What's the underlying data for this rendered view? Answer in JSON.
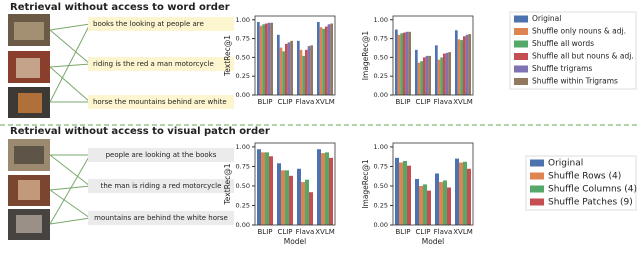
{
  "top": {
    "title": "Retrieval without access to word order",
    "captions": [
      "books the looking at people are",
      "riding is the red a man motorcycle",
      "horse the mountains behind are white"
    ]
  },
  "bottom": {
    "title": "Retrieval without access to visual patch order",
    "captions": [
      "people are looking at the books",
      "the man is riding a red motorcycle",
      "mountains are behind the white horse"
    ]
  },
  "chart_data": [
    {
      "type": "bar",
      "ylabel": "TextRec@1",
      "categories": [
        "BLIP",
        "CLIP",
        "Flava",
        "XVLM"
      ],
      "ylim": [
        0,
        1.05
      ],
      "yticks": [
        {
          "value": 0,
          "label": "0.00"
        },
        {
          "value": 0.25,
          "label": "0.25"
        },
        {
          "value": 0.5,
          "label": "0.50"
        },
        {
          "value": 0.75,
          "label": "0.75"
        },
        {
          "value": 1,
          "label": "1.00"
        }
      ],
      "series": [
        {
          "color": "#4c72b0",
          "values": [
            0.97,
            0.8,
            0.72,
            0.97
          ]
        },
        {
          "color": "#dd8452",
          "values": [
            0.92,
            0.63,
            0.6,
            0.9
          ]
        },
        {
          "color": "#55a868",
          "values": [
            0.94,
            0.58,
            0.52,
            0.88
          ]
        },
        {
          "color": "#c44e52",
          "values": [
            0.95,
            0.68,
            0.6,
            0.91
          ]
        },
        {
          "color": "#8172b3",
          "values": [
            0.96,
            0.7,
            0.65,
            0.94
          ]
        },
        {
          "color": "#937860",
          "values": [
            0.96,
            0.72,
            0.66,
            0.95
          ]
        }
      ]
    },
    {
      "type": "bar",
      "ylabel": "ImageRec@1",
      "categories": [
        "BLIP",
        "CLIP",
        "Flava",
        "XVLM"
      ],
      "ylim": [
        0,
        1.05
      ],
      "yticks": [
        {
          "value": 0,
          "label": "0.00"
        },
        {
          "value": 0.25,
          "label": "0.25"
        },
        {
          "value": 0.5,
          "label": "0.50"
        },
        {
          "value": 0.75,
          "label": "0.75"
        },
        {
          "value": 1,
          "label": "1.00"
        }
      ],
      "series": [
        {
          "name": "Original",
          "color": "#4c72b0",
          "values": [
            0.87,
            0.6,
            0.66,
            0.86
          ]
        },
        {
          "name": "Shuffle only nouns & adj.",
          "color": "#dd8452",
          "values": [
            0.8,
            0.43,
            0.47,
            0.74
          ]
        },
        {
          "name": "Shuffle all words",
          "color": "#55a868",
          "values": [
            0.82,
            0.45,
            0.5,
            0.73
          ]
        },
        {
          "name": "Shuffle all but nouns & adj.",
          "color": "#c44e52",
          "values": [
            0.83,
            0.5,
            0.55,
            0.78
          ]
        },
        {
          "name": "Shuffle trigrams",
          "color": "#8172b3",
          "values": [
            0.84,
            0.52,
            0.56,
            0.8
          ]
        },
        {
          "name": "Shuffle within Trigrams",
          "color": "#937860",
          "values": [
            0.84,
            0.52,
            0.57,
            0.81
          ]
        }
      ]
    },
    {
      "type": "bar",
      "ylabel": "TextRec@1",
      "xlabel": "Model",
      "categories": [
        "BLIP",
        "CLIP",
        "Flava",
        "XVLM"
      ],
      "ylim": [
        0,
        1.05
      ],
      "yticks": [
        {
          "value": 0,
          "label": "0.00"
        },
        {
          "value": 0.25,
          "label": "0.25"
        },
        {
          "value": 0.5,
          "label": "0.50"
        },
        {
          "value": 0.75,
          "label": "0.75"
        },
        {
          "value": 1,
          "label": "1.00"
        }
      ],
      "series": [
        {
          "color": "#4c72b0",
          "values": [
            0.97,
            0.79,
            0.72,
            0.97
          ]
        },
        {
          "color": "#dd8452",
          "values": [
            0.93,
            0.7,
            0.55,
            0.92
          ]
        },
        {
          "color": "#55a868",
          "values": [
            0.93,
            0.7,
            0.58,
            0.93
          ]
        },
        {
          "color": "#c44e52",
          "values": [
            0.88,
            0.63,
            0.42,
            0.86
          ]
        }
      ]
    },
    {
      "type": "bar",
      "ylabel": "ImageRec@1",
      "xlabel": "Model",
      "categories": [
        "BLIP",
        "CLIP",
        "Flava",
        "XVLM"
      ],
      "ylim": [
        0,
        1.05
      ],
      "yticks": [
        {
          "value": 0,
          "label": "0.00"
        },
        {
          "value": 0.25,
          "label": "0.25"
        },
        {
          "value": 0.5,
          "label": "0.50"
        },
        {
          "value": 0.75,
          "label": "0.75"
        },
        {
          "value": 1,
          "label": "1.00"
        }
      ],
      "series": [
        {
          "name": "Original",
          "color": "#4c72b0",
          "values": [
            0.86,
            0.59,
            0.66,
            0.85
          ]
        },
        {
          "name": "Shuffle Rows (4)",
          "color": "#dd8452",
          "values": [
            0.8,
            0.5,
            0.55,
            0.8
          ]
        },
        {
          "name": "Shuffle Columns (4)",
          "color": "#55a868",
          "values": [
            0.82,
            0.52,
            0.57,
            0.81
          ]
        },
        {
          "name": "Shuffle Patches (9)",
          "color": "#c44e52",
          "values": [
            0.76,
            0.44,
            0.48,
            0.72
          ]
        }
      ]
    }
  ]
}
